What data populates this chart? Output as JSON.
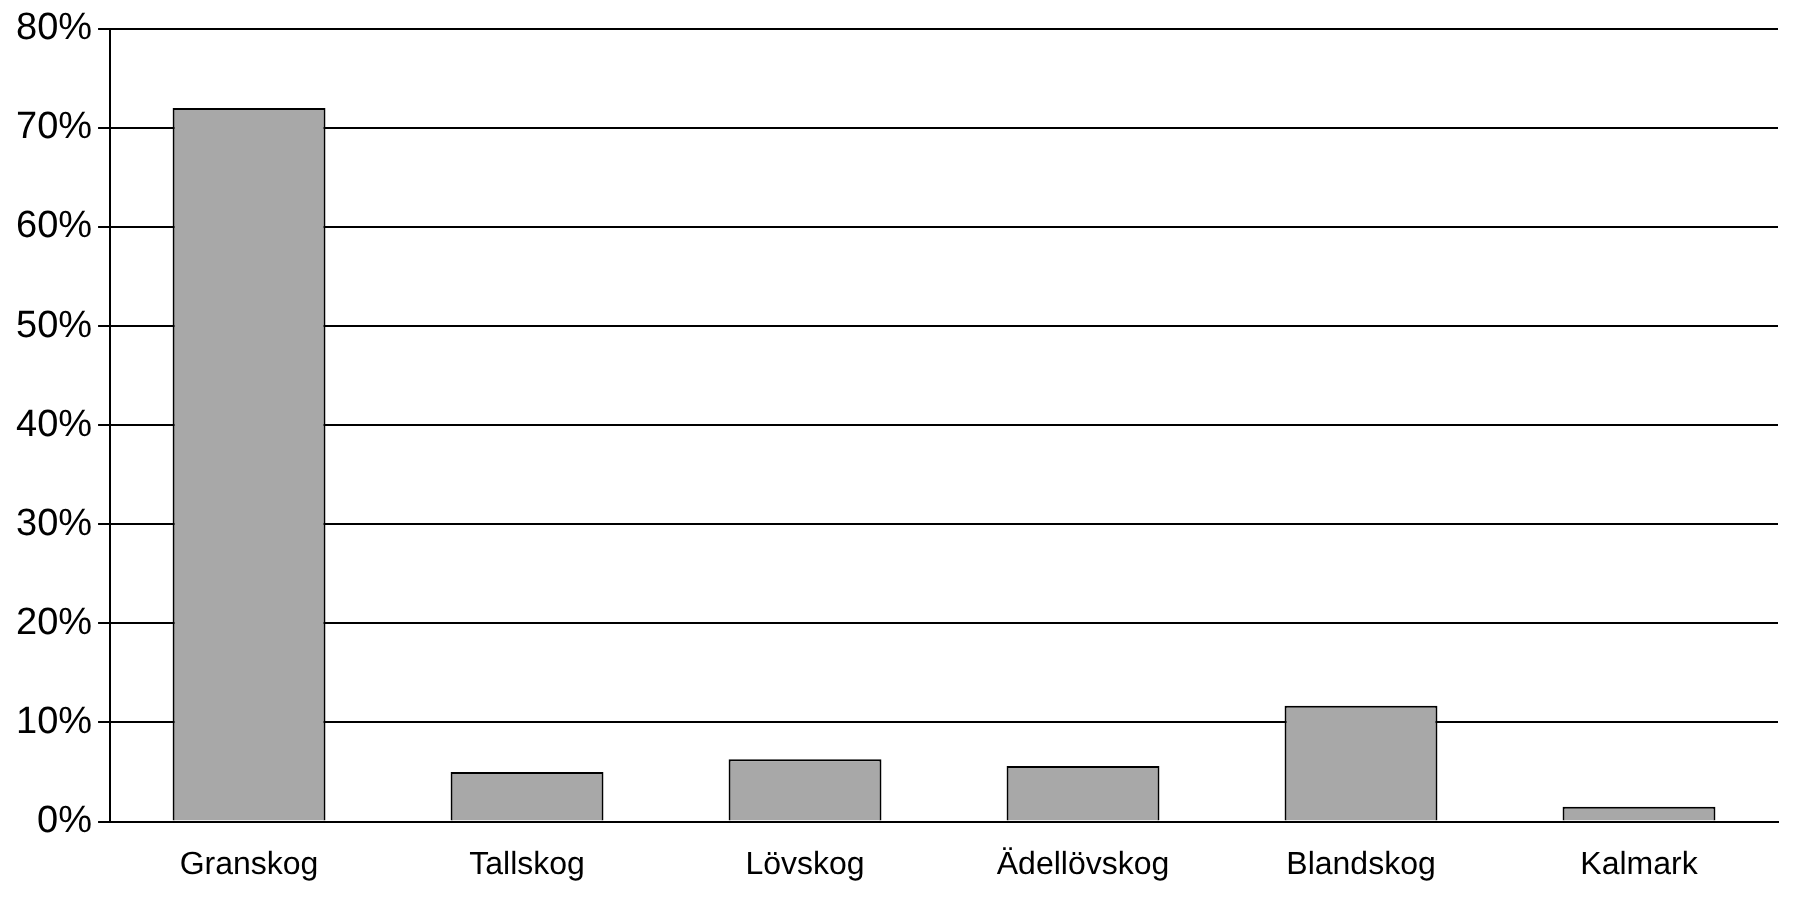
{
  "chart_data": {
    "type": "bar",
    "categories": [
      "Granskog",
      "Tallskog",
      "Lövskog",
      "Ädellövskog",
      "Blandskog",
      "Kalmark"
    ],
    "values": [
      72,
      5,
      6.3,
      5.6,
      11.7,
      1.5
    ],
    "color": "#a8a8a8",
    "ylim": [
      0,
      80
    ],
    "yticks": [
      {
        "value": 0,
        "label": "0%"
      },
      {
        "value": 10,
        "label": "10%"
      },
      {
        "value": 20,
        "label": "20%"
      },
      {
        "value": 30,
        "label": "30%"
      },
      {
        "value": 40,
        "label": "40%"
      },
      {
        "value": 50,
        "label": "50%"
      },
      {
        "value": 60,
        "label": "60%"
      },
      {
        "value": 70,
        "label": "70%"
      },
      {
        "value": 80,
        "label": "80%"
      }
    ],
    "grid": "y",
    "legend": false
  }
}
